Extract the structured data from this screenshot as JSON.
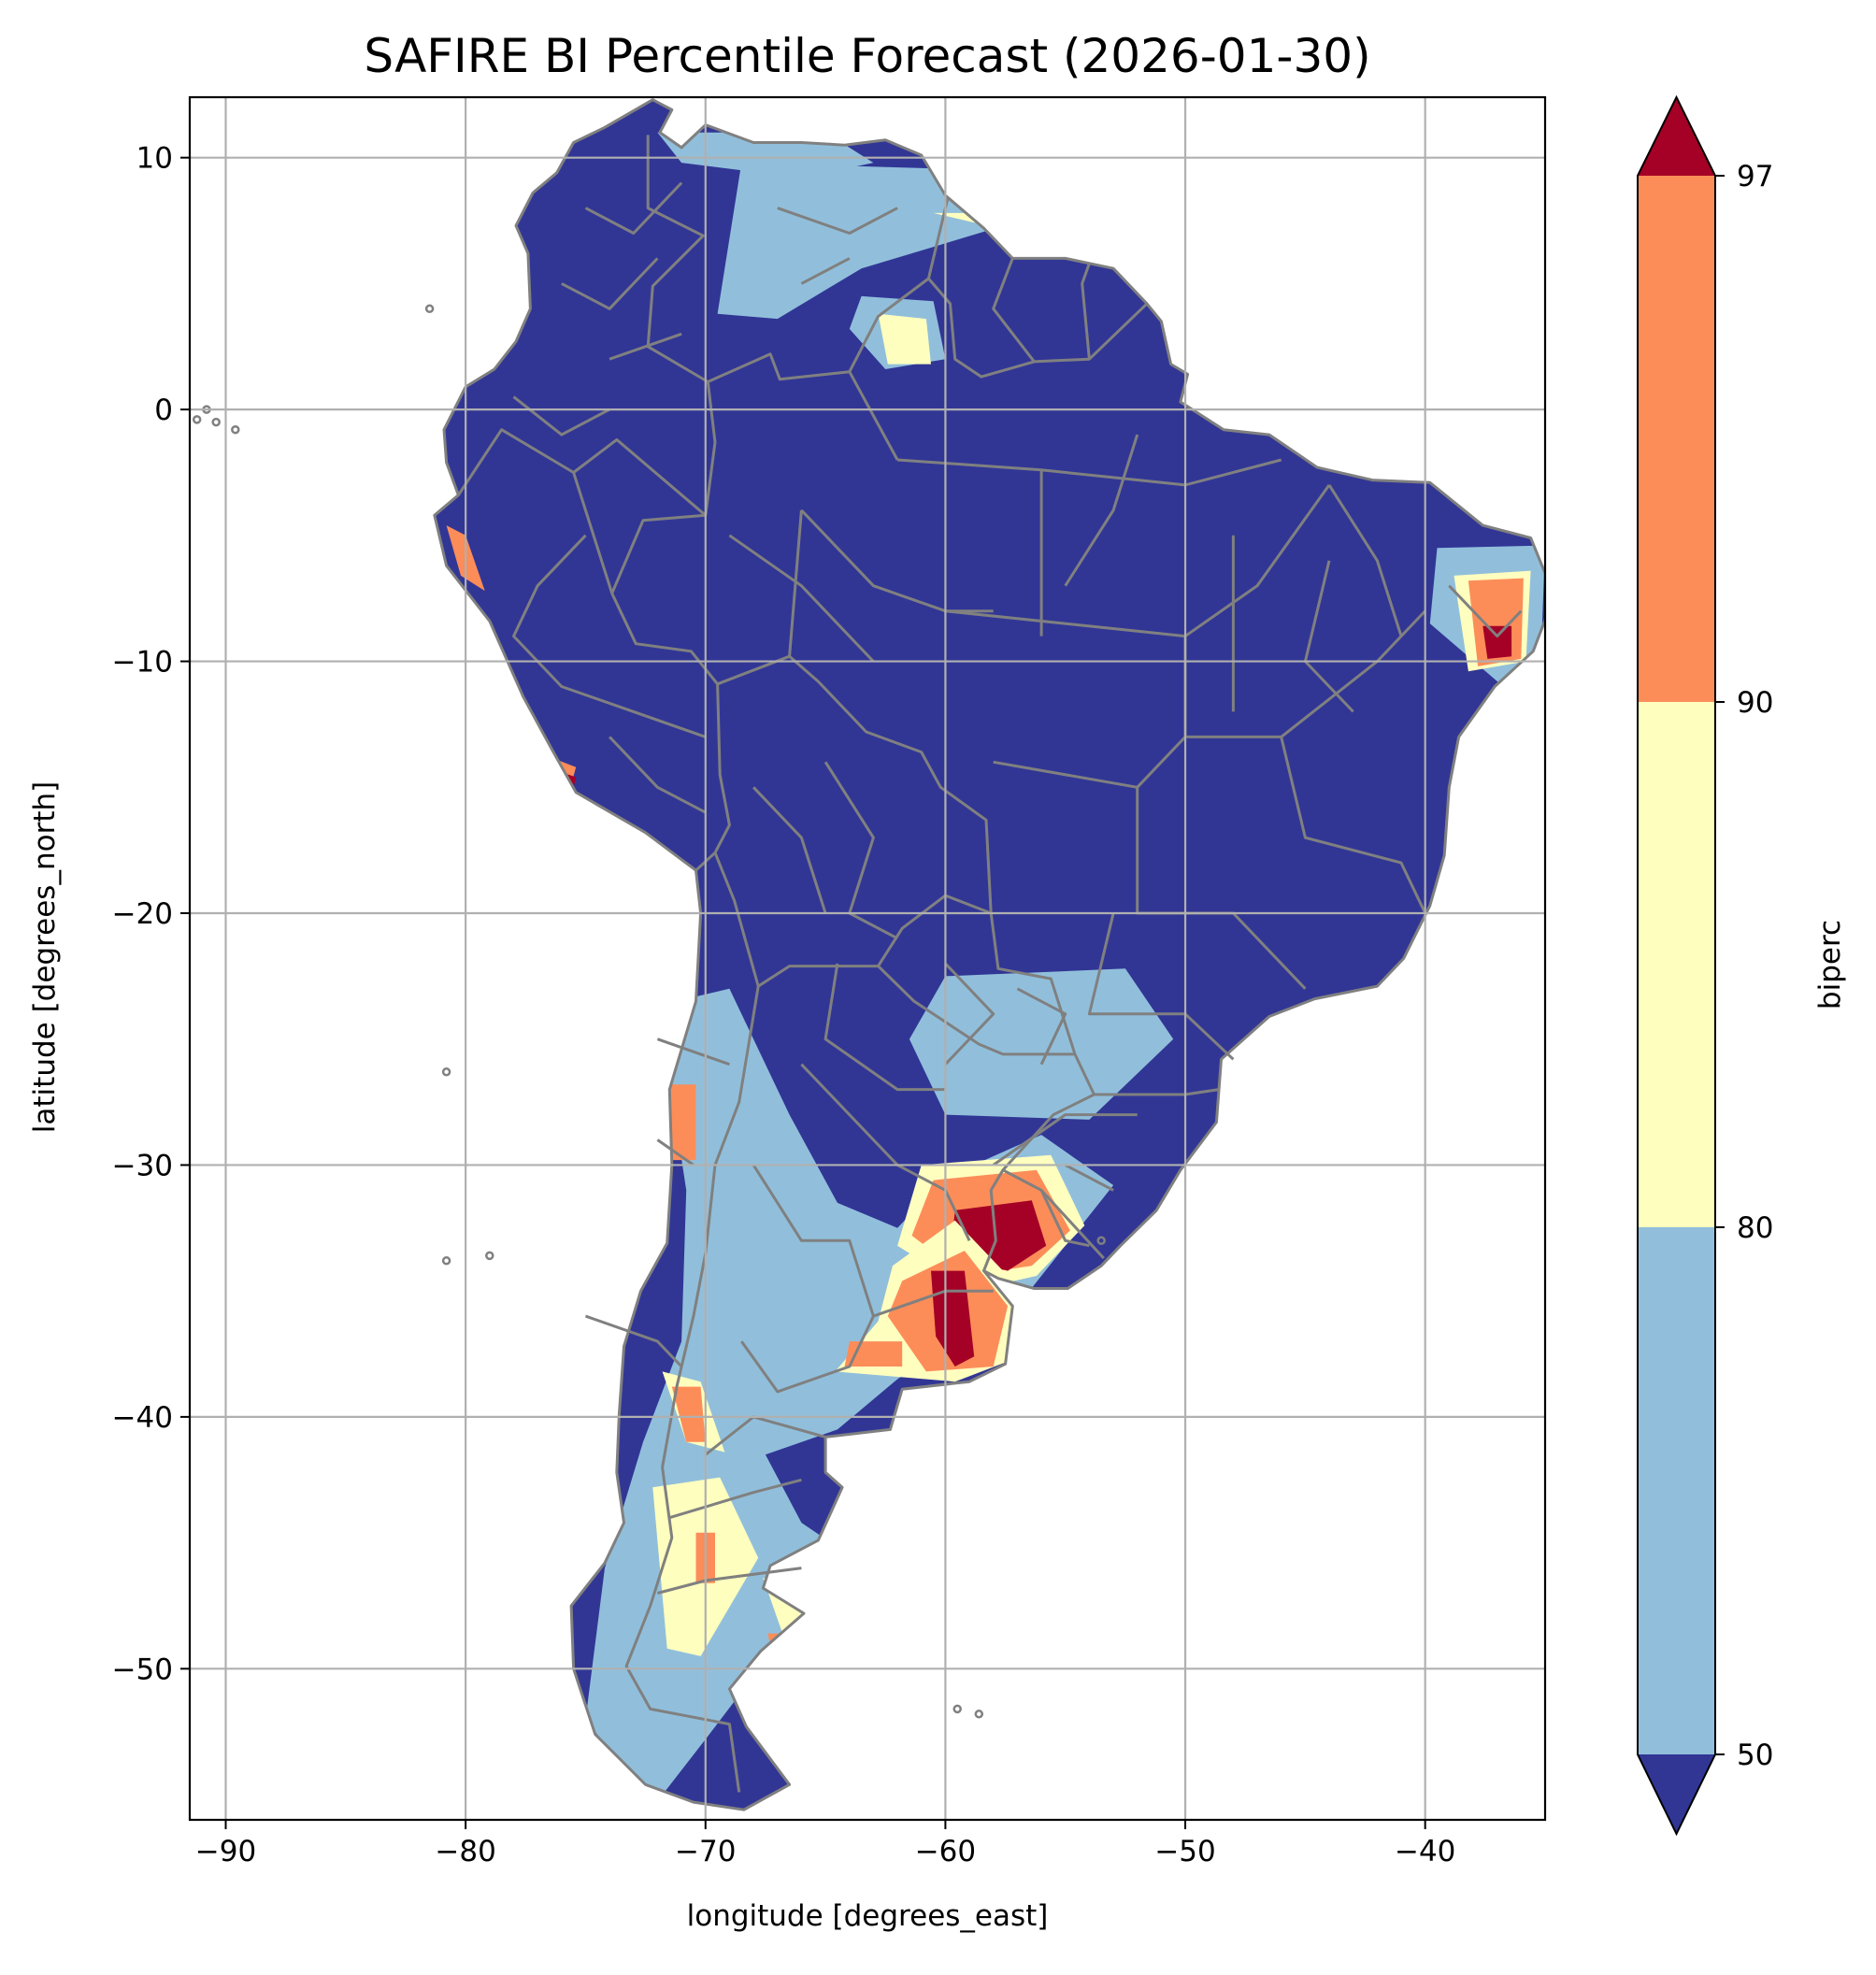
{
  "title": "SAFIRE BI Percentile Forecast (2026-01-30)",
  "xlabel": "longitude [degrees_east]",
  "ylabel": "latitude [degrees_north]",
  "chart_data": {
    "type": "heatmap",
    "title": "SAFIRE BI Percentile Forecast (2026-01-30)",
    "xlabel": "longitude [degrees_east]",
    "ylabel": "latitude [degrees_north]",
    "xlim": [
      -91.5,
      -35
    ],
    "ylim": [
      -56,
      12.4
    ],
    "grid": true,
    "x_ticks": [
      -90,
      -80,
      -70,
      -60,
      -50,
      -40
    ],
    "x_tick_labels": [
      "−90",
      "−80",
      "−70",
      "−60",
      "−50",
      "−40"
    ],
    "y_ticks": [
      10,
      0,
      -10,
      -20,
      -30,
      -40,
      -50
    ],
    "y_tick_labels": [
      "10",
      "0",
      "−10",
      "−20",
      "−30",
      "−40",
      "−50"
    ],
    "colorbar": {
      "label": "biperc",
      "boundaries": [
        50,
        80,
        90,
        97
      ],
      "tick_labels": [
        "50",
        "80",
        "90",
        "97"
      ],
      "extend": "both",
      "colors": {
        "under": "#313695",
        "50-80": "#91bfdb",
        "80-90": "#fefebf",
        "90-97": "#fc8d59",
        "over": "#a50026"
      }
    },
    "background_category": "under",
    "regions": [
      {
        "category": "50-80",
        "lon": [
          -68.5,
          -58,
          -56.5,
          -63.5,
          -67,
          -69.5
        ],
        "lat": [
          9.8,
          9.5,
          7.6,
          5.6,
          3.6,
          3.8
        ]
      },
      {
        "category": "50-80",
        "lon": [
          -72,
          -65,
          -63,
          -66,
          -71
        ],
        "lat": [
          11,
          11,
          9.8,
          9.2,
          9.8
        ]
      },
      {
        "category": "50-80",
        "lon": [
          -63.5,
          -60.5,
          -60,
          -62.5,
          -64
        ],
        "lat": [
          4.5,
          4.3,
          2,
          1.6,
          3.2
        ]
      },
      {
        "category": "80-90",
        "lon": [
          -62.8,
          -60.8,
          -60.6,
          -62.4
        ],
        "lat": [
          3.8,
          3.6,
          1.8,
          1.8
        ]
      },
      {
        "category": "80-90",
        "lon": [
          -60.5,
          -57.5,
          -56,
          -57.8
        ],
        "lat": [
          7.8,
          7.8,
          7.2,
          7.2
        ]
      },
      {
        "category": "50-80",
        "lon": [
          -39.5,
          -35,
          -35.2,
          -36.5,
          -39.8
        ],
        "lat": [
          -5.5,
          -5.4,
          -10.5,
          -11.2,
          -8.5
        ]
      },
      {
        "category": "80-90",
        "lon": [
          -38.8,
          -35.6,
          -35.8,
          -38.2
        ],
        "lat": [
          -6.6,
          -6.4,
          -10,
          -10.4
        ]
      },
      {
        "category": "90-97",
        "lon": [
          -38.2,
          -35.9,
          -36,
          -37.8
        ],
        "lat": [
          -6.8,
          -6.7,
          -9.9,
          -10.2
        ]
      },
      {
        "category": "over",
        "lon": [
          -37.6,
          -36.4,
          -36.4,
          -37.4
        ],
        "lat": [
          -8.6,
          -8.6,
          -9.8,
          -9.9
        ]
      },
      {
        "category": "90-97",
        "lon": [
          -80.8,
          -80,
          -79.2,
          -80.2
        ],
        "lat": [
          -4.6,
          -5,
          -7.2,
          -6.6
        ]
      },
      {
        "category": "90-97",
        "lon": [
          -76.5,
          -75.4,
          -75.8,
          -76.6
        ],
        "lat": [
          -13.8,
          -14.2,
          -15.6,
          -15
        ]
      },
      {
        "category": "over",
        "lon": [
          -76,
          -75.4,
          -75.6,
          -76.2
        ],
        "lat": [
          -14.4,
          -14.6,
          -15.4,
          -15
        ]
      },
      {
        "category": "50-80",
        "lon": [
          -60,
          -52.5,
          -50.5,
          -54,
          -60,
          -61.5
        ],
        "lat": [
          -22.5,
          -22.2,
          -25,
          -28.2,
          -28,
          -25
        ]
      },
      {
        "category": "50-80",
        "lon": [
          -73.5,
          -69,
          -66.5,
          -64.5,
          -62,
          -60,
          -56,
          -53,
          -56.5,
          -62,
          -64.5,
          -67.5,
          -66,
          -64,
          -65.8,
          -68.4,
          -70,
          -72.2,
          -75,
          -74.2,
          -72.6,
          -71,
          -70.8,
          -71.6
        ],
        "lat": [
          -24,
          -23,
          -28,
          -31.5,
          -32.5,
          -30.5,
          -28.8,
          -30.8,
          -35,
          -38.5,
          -40.5,
          -41.5,
          -44.2,
          -45.5,
          -47.8,
          -50.8,
          -52.8,
          -55.5,
          -52,
          -46,
          -41,
          -37,
          -31,
          -26
        ]
      },
      {
        "category": "80-90",
        "lon": [
          -72.2,
          -69.4,
          -67.8,
          -70.2,
          -71.6
        ],
        "lat": [
          -42.8,
          -42.4,
          -45.6,
          -49.5,
          -49.2
        ]
      },
      {
        "category": "80-90",
        "lon": [
          -67.6,
          -65.2,
          -64.6,
          -66.2
        ],
        "lat": [
          -46.4,
          -46.8,
          -51.2,
          -50.2
        ]
      },
      {
        "category": "80-90",
        "lon": [
          -71.8,
          -70.2,
          -69.2,
          -70.8
        ],
        "lat": [
          -38.2,
          -38.6,
          -41.4,
          -41
        ]
      },
      {
        "category": "90-97",
        "lon": [
          -71.4,
          -70.2,
          -70,
          -70.8
        ],
        "lat": [
          -38.8,
          -38.8,
          -41,
          -41
        ]
      },
      {
        "category": "90-97",
        "lon": [
          -71.6,
          -70.4,
          -70.4,
          -71.4
        ],
        "lat": [
          -26.8,
          -26.8,
          -29.8,
          -29.8
        ]
      },
      {
        "category": "90-97",
        "lon": [
          -70.4,
          -69.6,
          -69.6,
          -70.4
        ],
        "lat": [
          -44.6,
          -44.6,
          -46.6,
          -46.6
        ]
      },
      {
        "category": "90-97",
        "lon": [
          -67.4,
          -66.2,
          -66.2,
          -67.2
        ],
        "lat": [
          -48.6,
          -48.6,
          -49.6,
          -49.6
        ]
      },
      {
        "category": "80-90",
        "lon": [
          -61,
          -55.6,
          -54.2,
          -56.2,
          -59,
          -62
        ],
        "lat": [
          -30,
          -29.6,
          -32.4,
          -34.4,
          -35,
          -33.2
        ]
      },
      {
        "category": "90-97",
        "lon": [
          -60.5,
          -56.2,
          -54.8,
          -56.4,
          -59.2,
          -61.4
        ],
        "lat": [
          -30.6,
          -30.2,
          -32.6,
          -34,
          -34.4,
          -32.8
        ]
      },
      {
        "category": "over",
        "lon": [
          -59.6,
          -56.4,
          -55.8,
          -57.4,
          -59.8
        ],
        "lat": [
          -31.8,
          -31.4,
          -33.2,
          -34.2,
          -33.6
        ]
      },
      {
        "category": "80-90",
        "lon": [
          -62.2,
          -59.6,
          -56.4,
          -57.4,
          -59.6,
          -64.6,
          -62.8
        ],
        "lat": [
          -34,
          -32.2,
          -35.4,
          -37.8,
          -38.6,
          -38.2,
          -36.2
        ]
      },
      {
        "category": "90-97",
        "lon": [
          -61.8,
          -59.2,
          -57.4,
          -58,
          -60.8,
          -62.4
        ],
        "lat": [
          -34.6,
          -33.4,
          -35.6,
          -38,
          -38.2,
          -36
        ]
      },
      {
        "category": "over",
        "lon": [
          -60.6,
          -59.2,
          -58.8,
          -59.6,
          -60.4
        ],
        "lat": [
          -34.2,
          -34.2,
          -37.6,
          -38,
          -36.8
        ]
      },
      {
        "category": "90-97",
        "lon": [
          -64,
          -61.8,
          -61.8,
          -64.2
        ],
        "lat": [
          -37,
          -37,
          -38,
          -38
        ]
      }
    ]
  },
  "colorbar": {
    "label": "biperc",
    "ticks": [
      "97",
      "90",
      "80",
      "50"
    ]
  }
}
